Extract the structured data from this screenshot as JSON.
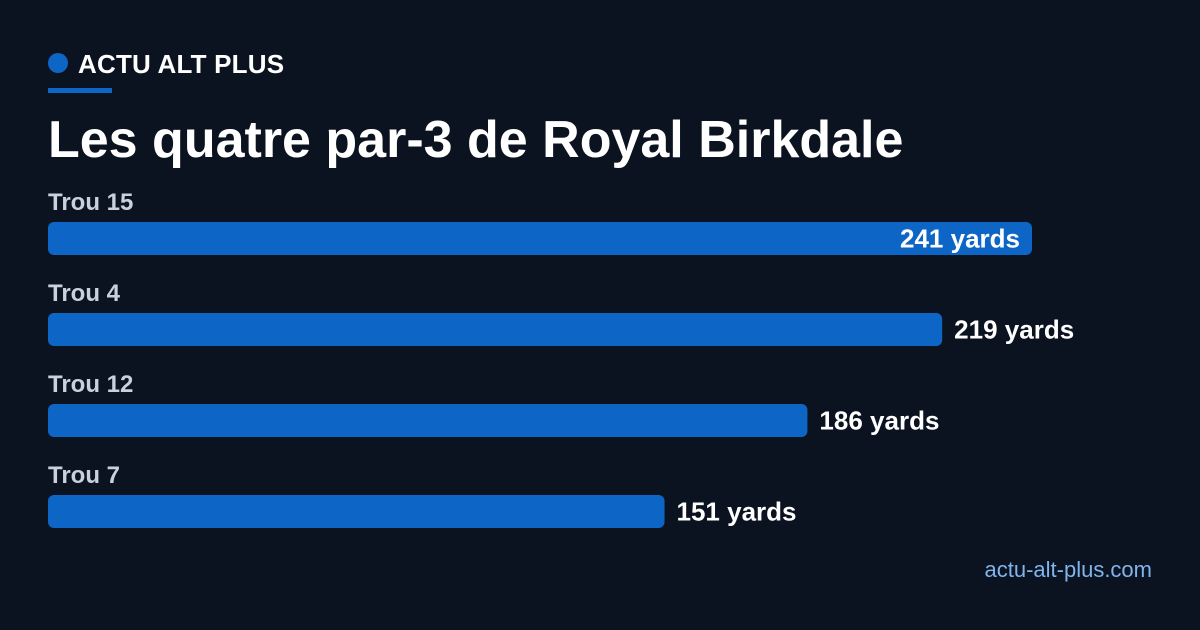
{
  "brand": {
    "name": "ACTU ALT PLUS",
    "dot_icon": "circle-icon"
  },
  "footer": {
    "url": "actu-alt-plus.com"
  },
  "colors": {
    "background": "#0b1320",
    "accent": "#0d66c6",
    "label": "#c9d1dc",
    "value_text": "#ffffff",
    "url_text": "#7fb4ec"
  },
  "chart_data": {
    "type": "bar",
    "orientation": "horizontal",
    "title": "Les quatre par-3 de Royal Birkdale",
    "categories": [
      "Trou 15",
      "Trou 4",
      "Trou 12",
      "Trou 7"
    ],
    "values": [
      241,
      219,
      186,
      151
    ],
    "value_labels": [
      "241 yards",
      "219 yards",
      "186 yards",
      "151 yards"
    ],
    "unit": "yards",
    "xlim": [
      0,
      241
    ],
    "grid": false,
    "legend": "none"
  }
}
